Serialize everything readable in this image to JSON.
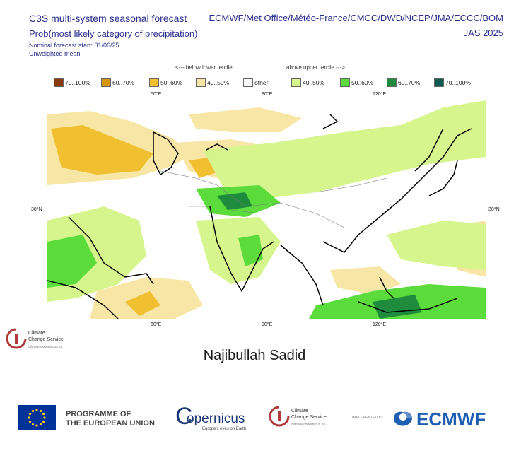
{
  "header": {
    "title_left": "C3S multi-system seasonal forecast",
    "subtitle_left": "Prob(most likely category of precipitation)",
    "nominal": "Nominal forecast start: 01/06/25",
    "unweighted": "Unweighted mean",
    "title_right": "ECMWF/Met Office/Météo-France/CMCC/DWD/NCEP/JMA/ECCC/BOM",
    "subtitle_right": "JAS 2025"
  },
  "legend": {
    "below_label": "<--- below lower tercile",
    "above_label": "above upper tercile --->",
    "items": [
      {
        "label": "70..100%",
        "color": "#8b3a0f"
      },
      {
        "label": "60..70%",
        "color": "#d4960f"
      },
      {
        "label": "50..60%",
        "color": "#f0c030"
      },
      {
        "label": "40..50%",
        "color": "#f7e6a6"
      },
      {
        "label": "other",
        "color": "#ffffff"
      },
      {
        "label": "40..50%",
        "color": "#d6f58c"
      },
      {
        "label": "50..60%",
        "color": "#5cdc3c"
      },
      {
        "label": "60..70%",
        "color": "#1e8c3c"
      },
      {
        "label": "70..100%",
        "color": "#0a5a50"
      }
    ]
  },
  "map": {
    "top_ticks": [
      "60°E",
      "90°E",
      "120°E"
    ],
    "bottom_ticks": [
      "60°E",
      "90°E",
      "120°E"
    ],
    "left_tick": "30°N",
    "right_tick": "30°N"
  },
  "small_logo": {
    "line1": "Climate",
    "line2": "Change Service",
    "line3": "climate.copernicus.eu"
  },
  "author": "Najibullah Sadid",
  "footer": {
    "eu_line1": "PROGRAMME OF",
    "eu_line2": "THE EUROPEAN UNION",
    "copernicus": "opernicus",
    "copernicus_c": "C",
    "copernicus_tag": "Europe's eyes on Earth",
    "c3s_line1": "Climate",
    "c3s_line2": "Change Service",
    "c3s_line3": "climate.copernicus.eu",
    "implemented": "IMPLEMENTED BY",
    "ecmwf": "ECMWF"
  }
}
